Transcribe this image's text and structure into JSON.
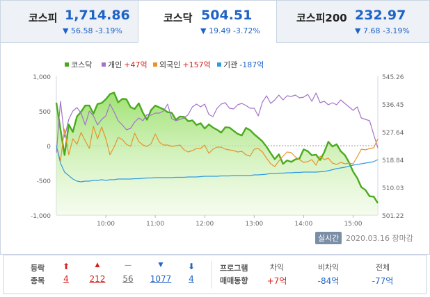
{
  "tabs": [
    {
      "name": "코스피",
      "value": "1,714.86",
      "change": "▼ 56.58 -3.19%"
    },
    {
      "name": "코스닥",
      "value": "504.51",
      "change": "▼ 19.49 -3.72%"
    },
    {
      "name": "코스피200",
      "value": "232.97",
      "change": "▼ 7.68 -3.19%"
    }
  ],
  "legend": [
    {
      "label": "코스닥",
      "amount": "",
      "color": "#4aaa1e"
    },
    {
      "label": "개인",
      "amount": "+47억",
      "color": "#a173c9"
    },
    {
      "label": "외국인",
      "amount": "+157억",
      "color": "#e8922a"
    },
    {
      "label": "기관",
      "amount": "-187억",
      "color": "#2f9be0"
    }
  ],
  "colors": {
    "up": "#d5211e",
    "down": "#1f63c6",
    "kosdaq": "#4aaa1e",
    "individual": "#a173c9",
    "foreign": "#e8922a",
    "institution": "#2f9be0"
  },
  "realtime_label": "실시간",
  "date_label": "2020.03.16 장마감",
  "stats": {
    "label_top": "등락",
    "label_bottom": "종목",
    "items": [
      {
        "icon": "upper-limit-arrow-icon",
        "glyph": "⬆",
        "count": "4",
        "color": "#d5211e"
      },
      {
        "icon": "rise-triangle-icon",
        "glyph": "▲",
        "count": "212",
        "color": "#d5211e"
      },
      {
        "icon": "flat-dash-icon",
        "glyph": "—",
        "count": "56",
        "color": "#666666"
      },
      {
        "icon": "fall-triangle-icon",
        "glyph": "▼",
        "count": "1077",
        "color": "#1f63c6"
      },
      {
        "icon": "lower-limit-arrow-icon",
        "glyph": "⬇",
        "count": "4",
        "color": "#1f63c6"
      }
    ]
  },
  "program": {
    "label_top": "프로그램",
    "label_bottom": "매매동향",
    "columns": [
      {
        "head": "차익",
        "value": "+7억",
        "color": "#d5211e"
      },
      {
        "head": "비차익",
        "value": "-84억",
        "color": "#1f63c6"
      },
      {
        "head": "전체",
        "value": "-77억",
        "color": "#1f63c6"
      }
    ]
  },
  "chart_data": {
    "type": "line",
    "x_ticks": [
      "10:00",
      "11:00",
      "12:00",
      "13:00",
      "14:00",
      "15:00"
    ],
    "y_left_ticks": [
      "1,000",
      "500",
      "0",
      "-500",
      "-1,000"
    ],
    "y_left_lim": [
      -1000,
      1000
    ],
    "y_right_ticks": [
      "545.26",
      "536.45",
      "527.64",
      "518.84",
      "510.03",
      "501.22"
    ],
    "y_right_lim": [
      501.22,
      545.26
    ],
    "x_range": [
      "09:00",
      "15:30"
    ],
    "series": [
      {
        "name": "코스닥",
        "axis": "right",
        "color": "#4aaa1e",
        "area": true,
        "x": [
          "09:00",
          "09:05",
          "09:10",
          "09:15",
          "09:20",
          "09:25",
          "09:30",
          "09:35",
          "09:40",
          "09:45",
          "09:50",
          "09:55",
          "10:00",
          "10:05",
          "10:10",
          "10:15",
          "10:20",
          "10:25",
          "10:30",
          "10:35",
          "10:40",
          "10:45",
          "10:50",
          "10:55",
          "11:00",
          "11:05",
          "11:10",
          "11:15",
          "11:20",
          "11:25",
          "11:30",
          "11:35",
          "11:40",
          "11:45",
          "11:50",
          "11:55",
          "12:00",
          "12:05",
          "12:10",
          "12:15",
          "12:20",
          "12:25",
          "12:30",
          "12:35",
          "12:40",
          "12:45",
          "12:50",
          "12:55",
          "13:00",
          "13:05",
          "13:10",
          "13:15",
          "13:20",
          "13:25",
          "13:30",
          "13:35",
          "13:40",
          "13:45",
          "13:50",
          "13:55",
          "14:00",
          "14:05",
          "14:10",
          "14:15",
          "14:20",
          "14:25",
          "14:30",
          "14:35",
          "14:40",
          "14:45",
          "14:50",
          "14:55",
          "15:00",
          "15:05",
          "15:10",
          "15:15",
          "15:20",
          "15:25",
          "15:30"
        ],
        "values": [
          536.9,
          528.5,
          520.3,
          530.0,
          527.6,
          532.5,
          534.0,
          536.0,
          536.0,
          533.4,
          536.5,
          536.8,
          538.0,
          539.6,
          540.1,
          537.0,
          538.1,
          538.0,
          535.5,
          534.9,
          536.7,
          533.7,
          531.5,
          534.6,
          536.0,
          535.4,
          534.8,
          533.9,
          533.7,
          531.5,
          532.5,
          532.4,
          531.0,
          531.3,
          529.8,
          530.4,
          528.7,
          530.0,
          529.0,
          528.3,
          527.4,
          529.1,
          529.0,
          528.0,
          527.0,
          526.5,
          528.9,
          528.2,
          526.9,
          525.8,
          524.6,
          522.9,
          520.9,
          519.0,
          520.5,
          517.5,
          518.6,
          518.1,
          518.9,
          519.2,
          522.1,
          521.5,
          520.2,
          520.4,
          518.7,
          521.2,
          524.5,
          523.0,
          523.7,
          521.5,
          520.3,
          518.0,
          515.0,
          513.0,
          510.1,
          509.2,
          507.2,
          507.1,
          505.0
        ]
      },
      {
        "name": "개인",
        "axis": "left",
        "color": "#a173c9",
        "x": [
          "09:00",
          "09:05",
          "09:10",
          "09:15",
          "09:20",
          "09:25",
          "09:30",
          "09:35",
          "09:40",
          "09:45",
          "09:50",
          "09:55",
          "10:00",
          "10:05",
          "10:10",
          "10:15",
          "10:20",
          "10:25",
          "10:30",
          "10:35",
          "10:40",
          "10:45",
          "10:50",
          "10:55",
          "11:00",
          "11:05",
          "11:10",
          "11:15",
          "11:20",
          "11:25",
          "11:30",
          "11:35",
          "11:40",
          "11:45",
          "11:50",
          "11:55",
          "12:00",
          "12:05",
          "12:10",
          "12:15",
          "12:20",
          "12:25",
          "12:30",
          "12:35",
          "12:40",
          "12:45",
          "12:50",
          "12:55",
          "13:00",
          "13:05",
          "13:10",
          "13:15",
          "13:20",
          "13:25",
          "13:30",
          "13:35",
          "13:40",
          "13:45",
          "13:50",
          "13:55",
          "14:00",
          "14:05",
          "14:10",
          "14:15",
          "14:20",
          "14:25",
          "14:30",
          "14:35",
          "14:40",
          "14:45",
          "14:50",
          "14:55",
          "15:00",
          "15:05",
          "15:10",
          "15:15",
          "15:20",
          "15:25",
          "15:30"
        ],
        "values": [
          -100,
          640,
          120,
          380,
          500,
          550,
          470,
          300,
          500,
          430,
          300,
          380,
          430,
          600,
          490,
          360,
          300,
          230,
          250,
          340,
          400,
          360,
          450,
          440,
          470,
          470,
          500,
          600,
          390,
          360,
          380,
          400,
          450,
          560,
          600,
          560,
          600,
          450,
          420,
          540,
          600,
          620,
          540,
          530,
          590,
          610,
          580,
          540,
          540,
          430,
          630,
          720,
          610,
          660,
          730,
          660,
          720,
          710,
          730,
          690,
          700,
          740,
          640,
          760,
          620,
          640,
          590,
          620,
          590,
          660,
          610,
          560,
          510,
          560,
          400,
          380,
          360,
          160,
          -30
        ]
      },
      {
        "name": "외국인",
        "axis": "left",
        "color": "#e8922a",
        "x": [
          "09:00",
          "09:05",
          "09:10",
          "09:15",
          "09:20",
          "09:25",
          "09:30",
          "09:35",
          "09:40",
          "09:45",
          "09:50",
          "09:55",
          "10:00",
          "10:05",
          "10:10",
          "10:15",
          "10:20",
          "10:25",
          "10:30",
          "10:35",
          "10:40",
          "10:45",
          "10:50",
          "10:55",
          "11:00",
          "11:05",
          "11:10",
          "11:15",
          "11:20",
          "11:25",
          "11:30",
          "11:35",
          "11:40",
          "11:45",
          "11:50",
          "11:55",
          "12:00",
          "12:05",
          "12:10",
          "12:15",
          "12:20",
          "12:25",
          "12:30",
          "12:35",
          "12:40",
          "12:45",
          "12:50",
          "12:55",
          "13:00",
          "13:05",
          "13:10",
          "13:15",
          "13:20",
          "13:25",
          "13:30",
          "13:35",
          "13:40",
          "13:45",
          "13:50",
          "13:55",
          "14:00",
          "14:05",
          "14:10",
          "14:15",
          "14:20",
          "14:25",
          "14:30",
          "14:35",
          "14:40",
          "14:45",
          "14:50",
          "14:55",
          "15:00",
          "15:05",
          "15:10",
          "15:15",
          "15:20",
          "15:25",
          "15:30"
        ],
        "values": [
          0,
          -220,
          240,
          -130,
          100,
          20,
          190,
          70,
          -40,
          280,
          100,
          270,
          100,
          -130,
          -20,
          120,
          90,
          20,
          -10,
          180,
          60,
          10,
          -10,
          30,
          170,
          50,
          10,
          10,
          -10,
          0,
          10,
          -60,
          -90,
          -70,
          -40,
          -40,
          10,
          -110,
          -50,
          -20,
          -20,
          -50,
          -60,
          -70,
          -90,
          -80,
          -130,
          -150,
          -50,
          -40,
          -90,
          -180,
          -260,
          -300,
          -220,
          -150,
          -90,
          -100,
          -160,
          -200,
          -240,
          -230,
          -200,
          -280,
          -150,
          -200,
          -180,
          -250,
          -270,
          -240,
          -260,
          -250,
          -260,
          -160,
          -50,
          -60,
          -40,
          -30,
          100
        ]
      },
      {
        "name": "기관",
        "axis": "left",
        "color": "#2f9be0",
        "x": [
          "09:00",
          "09:05",
          "09:10",
          "09:15",
          "09:20",
          "09:25",
          "09:30",
          "09:35",
          "09:40",
          "09:45",
          "09:50",
          "09:55",
          "10:00",
          "10:05",
          "10:10",
          "10:15",
          "10:20",
          "10:25",
          "10:30",
          "10:35",
          "10:40",
          "10:45",
          "10:50",
          "10:55",
          "11:00",
          "11:05",
          "11:10",
          "11:15",
          "11:20",
          "11:25",
          "11:30",
          "11:35",
          "11:40",
          "11:45",
          "11:50",
          "11:55",
          "12:00",
          "12:05",
          "12:10",
          "12:15",
          "12:20",
          "12:25",
          "12:30",
          "12:35",
          "12:40",
          "12:45",
          "12:50",
          "12:55",
          "13:00",
          "13:05",
          "13:10",
          "13:15",
          "13:20",
          "13:25",
          "13:30",
          "13:35",
          "13:40",
          "13:45",
          "13:50",
          "13:55",
          "14:00",
          "14:05",
          "14:10",
          "14:15",
          "14:20",
          "14:25",
          "14:30",
          "14:35",
          "14:40",
          "14:45",
          "14:50",
          "14:55",
          "15:00",
          "15:05",
          "15:10",
          "15:15",
          "15:20",
          "15:25",
          "15:30"
        ],
        "values": [
          0,
          -250,
          -380,
          -430,
          -480,
          -510,
          -520,
          -510,
          -510,
          -500,
          -500,
          -490,
          -500,
          -490,
          -490,
          -480,
          -480,
          -480,
          -480,
          -475,
          -475,
          -470,
          -465,
          -465,
          -460,
          -460,
          -460,
          -460,
          -460,
          -455,
          -455,
          -455,
          -450,
          -450,
          -450,
          -445,
          -440,
          -440,
          -440,
          -440,
          -435,
          -435,
          -435,
          -430,
          -430,
          -430,
          -430,
          -430,
          -420,
          -420,
          -415,
          -410,
          -400,
          -400,
          -395,
          -395,
          -390,
          -390,
          -385,
          -385,
          -380,
          -380,
          -380,
          -380,
          -375,
          -370,
          -360,
          -345,
          -330,
          -320,
          -310,
          -295,
          -280,
          -270,
          -260,
          -250,
          -240,
          -230,
          -200
        ]
      }
    ]
  }
}
